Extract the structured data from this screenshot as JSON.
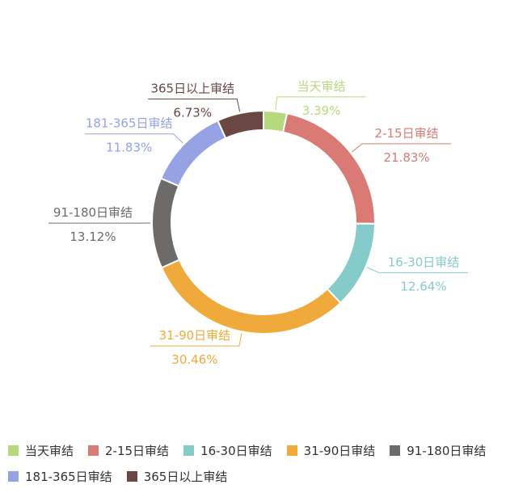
{
  "chart_data": {
    "type": "pie",
    "variant": "donut",
    "title": "",
    "categories": [
      "当天审结",
      "2-15日审结",
      "16-30日审结",
      "31-90日审结",
      "91-180日审结",
      "181-365日审结",
      "365日以上审结"
    ],
    "values": [
      3.39,
      21.83,
      12.64,
      30.46,
      13.12,
      11.83,
      6.73
    ],
    "value_labels": [
      "3.39%",
      "21.83%",
      "12.64%",
      "30.46%",
      "13.12%",
      "11.83%",
      "6.73%"
    ],
    "colors": [
      "#b5d97c",
      "#d97a75",
      "#84cbc9",
      "#f0aa3c",
      "#6d6a6a",
      "#95a2e3",
      "#6b4744"
    ],
    "legend": {
      "position": "bottom"
    }
  }
}
